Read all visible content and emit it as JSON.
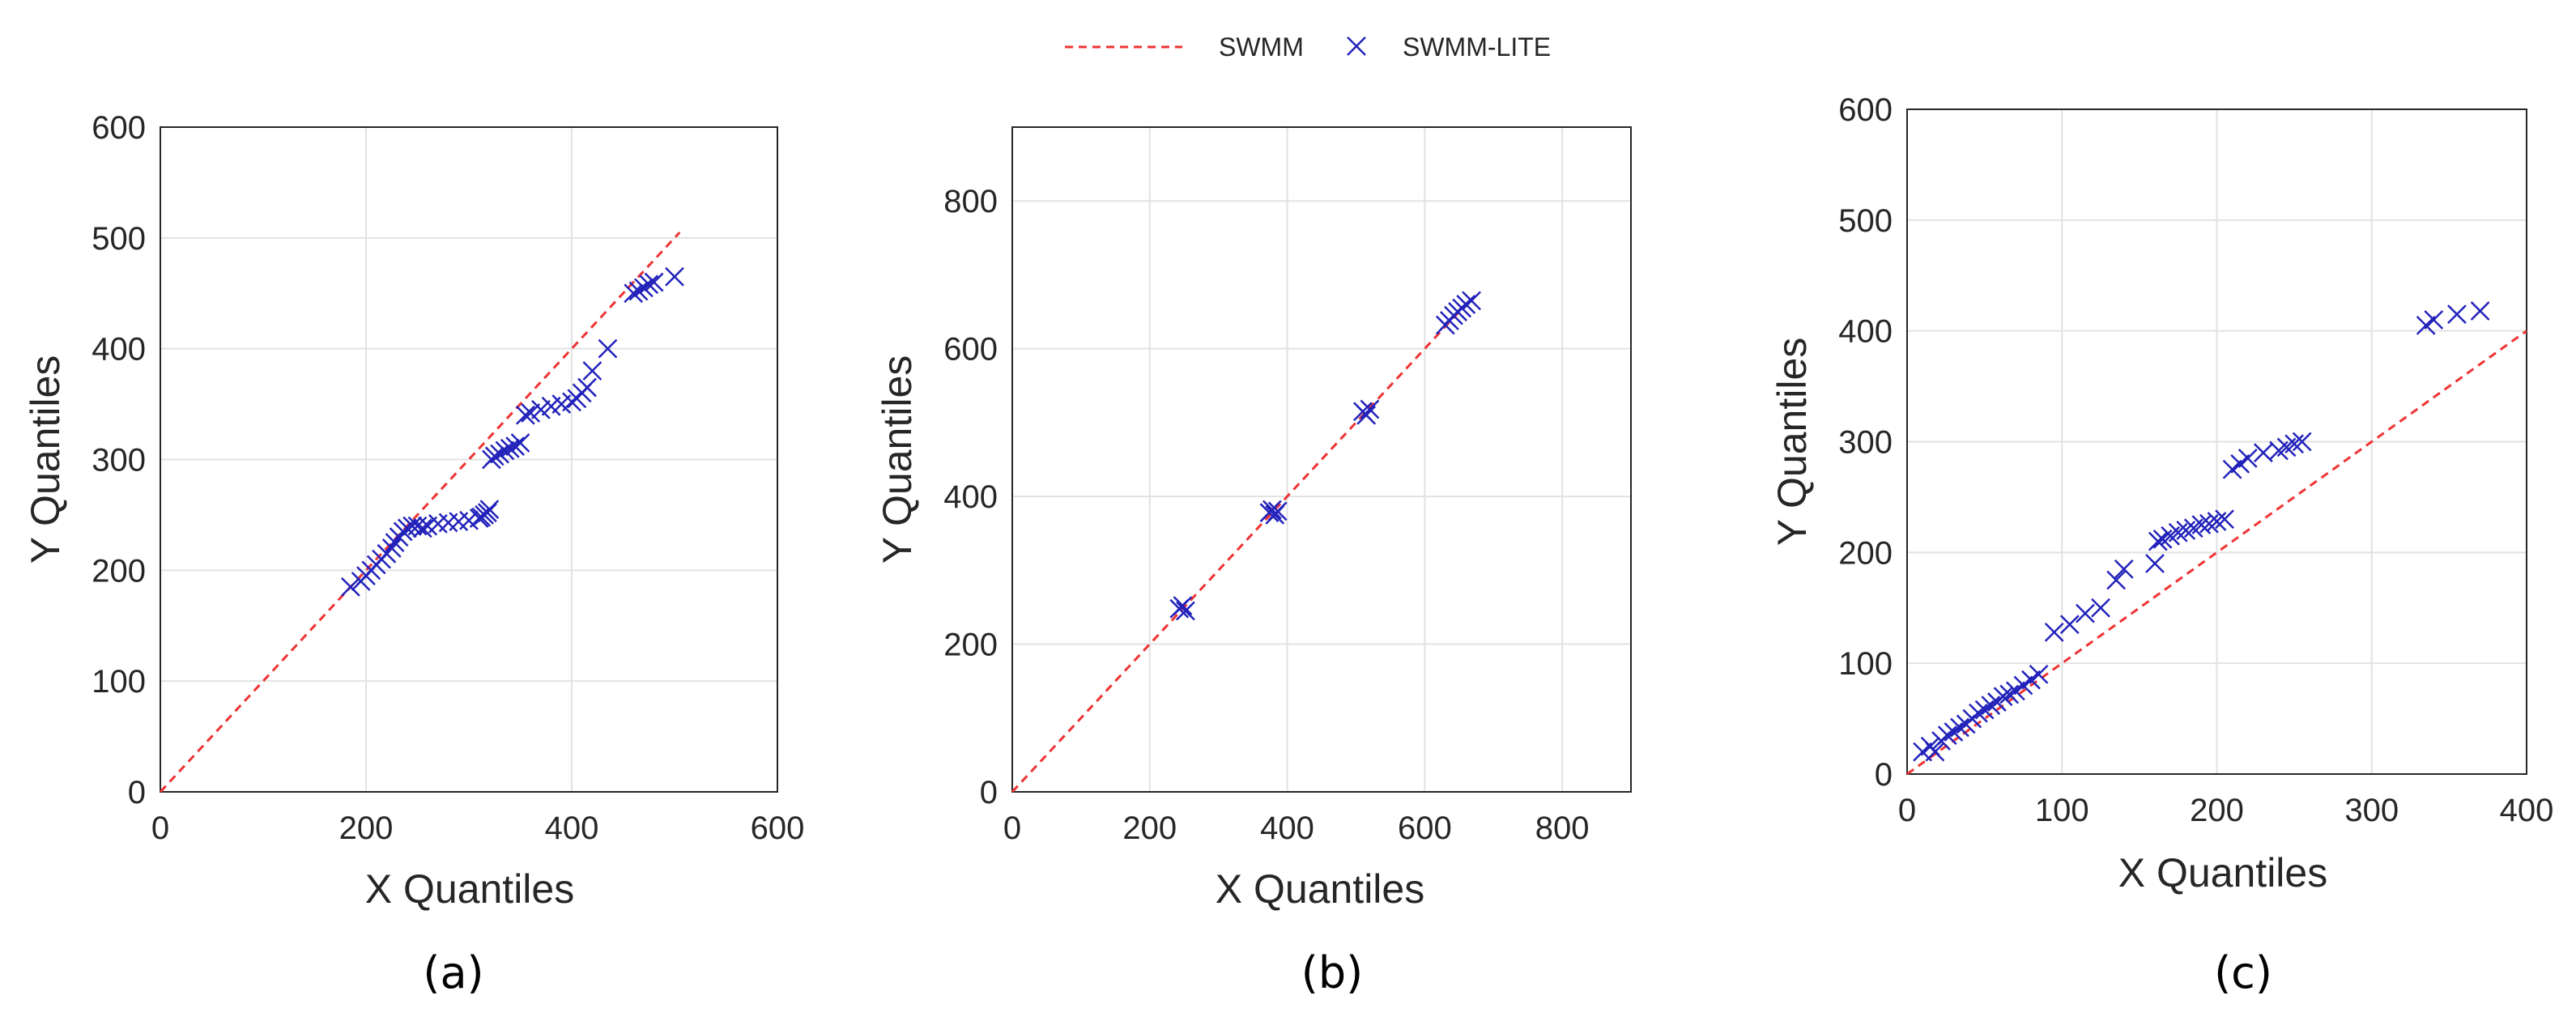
{
  "legend": {
    "ref_label": "SWMM",
    "sample_label": "SWMM-LITE",
    "ref_color": "#ee3333",
    "sample_color": "#2222bb"
  },
  "chart_data": [
    {
      "type": "scatter",
      "caption": "(a)",
      "xlabel": "X Quantiles",
      "ylabel": "Y Quantiles",
      "xlim": [
        0,
        600
      ],
      "ylim": [
        0,
        600
      ],
      "xticks": [
        "0",
        "200",
        "400",
        "600"
      ],
      "yticks": [
        "0",
        "100",
        "200",
        "300",
        "400",
        "500",
        "600"
      ],
      "grid": true,
      "reference_line": {
        "name": "SWMM",
        "x": [
          0,
          505
        ],
        "y": [
          0,
          505
        ]
      },
      "series": [
        {
          "name": "SWMM-LITE",
          "x": [
            185,
            195,
            200,
            205,
            210,
            215,
            220,
            225,
            228,
            232,
            236,
            240,
            245,
            250,
            255,
            260,
            270,
            280,
            290,
            300,
            310,
            312,
            315,
            318,
            320,
            322,
            325,
            330,
            335,
            340,
            345,
            350,
            355,
            360,
            370,
            380,
            390,
            400,
            405,
            410,
            415,
            420,
            435,
            460,
            465,
            470,
            475,
            480,
            500
          ],
          "y": [
            185,
            190,
            195,
            200,
            205,
            210,
            215,
            220,
            225,
            230,
            235,
            238,
            240,
            240,
            238,
            240,
            242,
            243,
            244,
            245,
            247,
            248,
            250,
            252,
            255,
            300,
            303,
            305,
            308,
            310,
            312,
            315,
            340,
            342,
            345,
            348,
            350,
            352,
            355,
            360,
            365,
            380,
            400,
            450,
            452,
            455,
            458,
            460,
            465
          ]
        }
      ]
    },
    {
      "type": "scatter",
      "caption": "(b)",
      "xlabel": "X Quantiles",
      "ylabel": "Y Quantiles",
      "xlim": [
        0,
        900
      ],
      "ylim": [
        0,
        900
      ],
      "xticks": [
        "0",
        "200",
        "400",
        "600",
        "800"
      ],
      "yticks": [
        "0",
        "200",
        "400",
        "600",
        "800"
      ],
      "grid": true,
      "reference_line": {
        "name": "SWMM",
        "x": [
          0,
          650
        ],
        "y": [
          0,
          650
        ]
      },
      "series": [
        {
          "name": "SWMM-LITE",
          "x": [
            243,
            248,
            252,
            374,
            378,
            382,
            386,
            510,
            515,
            520,
            630,
            636,
            642,
            648,
            654,
            660,
            668
          ],
          "y": [
            248,
            252,
            245,
            378,
            382,
            375,
            380,
            515,
            510,
            518,
            632,
            638,
            645,
            650,
            655,
            660,
            665
          ]
        }
      ]
    },
    {
      "type": "scatter",
      "caption": "(c)",
      "xlabel": "X Quantiles",
      "ylabel": "Y Quantiles",
      "xlim": [
        0,
        400
      ],
      "ylim": [
        0,
        600
      ],
      "xticks": [
        "0",
        "100",
        "200",
        "300",
        "400"
      ],
      "yticks": [
        "0",
        "100",
        "200",
        "300",
        "400",
        "500",
        "600"
      ],
      "grid": true,
      "reference_line": {
        "name": "SWMM",
        "x": [
          0,
          400
        ],
        "y": [
          0,
          400
        ]
      },
      "series": [
        {
          "name": "SWMM-LITE",
          "x": [
            10,
            15,
            18,
            22,
            26,
            30,
            34,
            38,
            42,
            46,
            50,
            54,
            58,
            62,
            66,
            70,
            75,
            80,
            85,
            95,
            105,
            115,
            125,
            135,
            140,
            160,
            162,
            165,
            170,
            175,
            180,
            185,
            190,
            195,
            200,
            205,
            210,
            215,
            220,
            230,
            240,
            245,
            250,
            255,
            335,
            340,
            355,
            370
          ],
          "y": [
            20,
            25,
            20,
            30,
            35,
            38,
            42,
            45,
            50,
            55,
            58,
            62,
            65,
            70,
            72,
            75,
            80,
            85,
            90,
            128,
            135,
            145,
            150,
            175,
            185,
            190,
            210,
            212,
            215,
            218,
            220,
            222,
            225,
            226,
            228,
            230,
            275,
            280,
            285,
            290,
            292,
            295,
            298,
            300,
            405,
            410,
            415,
            418
          ]
        }
      ]
    }
  ]
}
